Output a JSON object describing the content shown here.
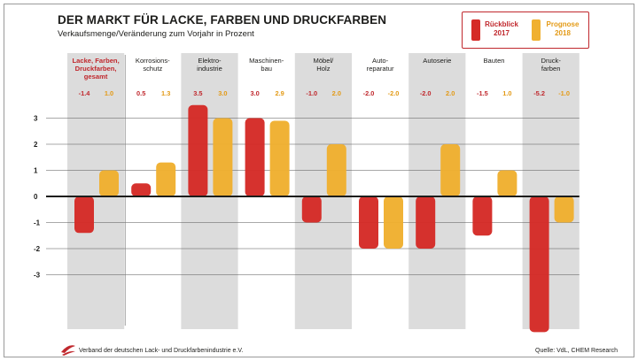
{
  "title": "DER MARKT FÜR LACKE, FARBEN UND DRUCKFARBEN",
  "subtitle": "Verkaufsmenge/Veränderung zum Vorjahr in Prozent",
  "legend": {
    "series1_line1": "Rückblick",
    "series1_line2": "2017",
    "series2_line1": "Prognose",
    "series2_line2": "2018"
  },
  "colors": {
    "red": "#d52b27",
    "orange": "#f0b02f",
    "title_red": "#c0282d",
    "shade": "#dcdcdc"
  },
  "footer": {
    "organization": "Verband der deutschen Lack- und Druckfarbenindustrie e.V.",
    "source": "Quelle: VdL, CHEM Research"
  },
  "chart_data": {
    "type": "bar",
    "categories": [
      [
        "Lacke, Farben,",
        "Druckfarben,",
        "gesamt"
      ],
      [
        "Korrosions-",
        "schutz"
      ],
      [
        "Elektro-",
        "industrie"
      ],
      [
        "Maschinen-",
        "bau"
      ],
      [
        "Möbel/",
        "Holz"
      ],
      [
        "Auto-",
        "reparatur"
      ],
      [
        "Autoserie"
      ],
      [
        "Bauten"
      ],
      [
        "Druck-",
        "farben"
      ]
    ],
    "series": [
      {
        "name": "Rückblick 2017",
        "values": [
          -1.4,
          0.5,
          3.5,
          3.0,
          -1.0,
          -2.0,
          -2.0,
          -1.5,
          -5.2
        ]
      },
      {
        "name": "Prognose 2018",
        "values": [
          1.0,
          1.3,
          3.0,
          2.9,
          2.0,
          -2.0,
          2.0,
          1.0,
          -1.0
        ]
      }
    ],
    "value_labels": [
      [
        "-1.4",
        "1.0"
      ],
      [
        "0.5",
        "1.3"
      ],
      [
        "3.5",
        "3.0"
      ],
      [
        "3.0",
        "2.9"
      ],
      [
        "-1.0",
        "2.0"
      ],
      [
        "-2.0",
        "-2.0"
      ],
      [
        "-2.0",
        "2.0"
      ],
      [
        "-1.5",
        "1.0"
      ],
      [
        "-5.2",
        "-1.0"
      ]
    ],
    "y_ticks": [
      3,
      2,
      1,
      0,
      -1,
      -2,
      -3
    ],
    "ylim": [
      -5.2,
      3.5
    ],
    "grid": true,
    "legend_position": "top-right",
    "shaded_columns": [
      0,
      2,
      4,
      6,
      8
    ]
  }
}
